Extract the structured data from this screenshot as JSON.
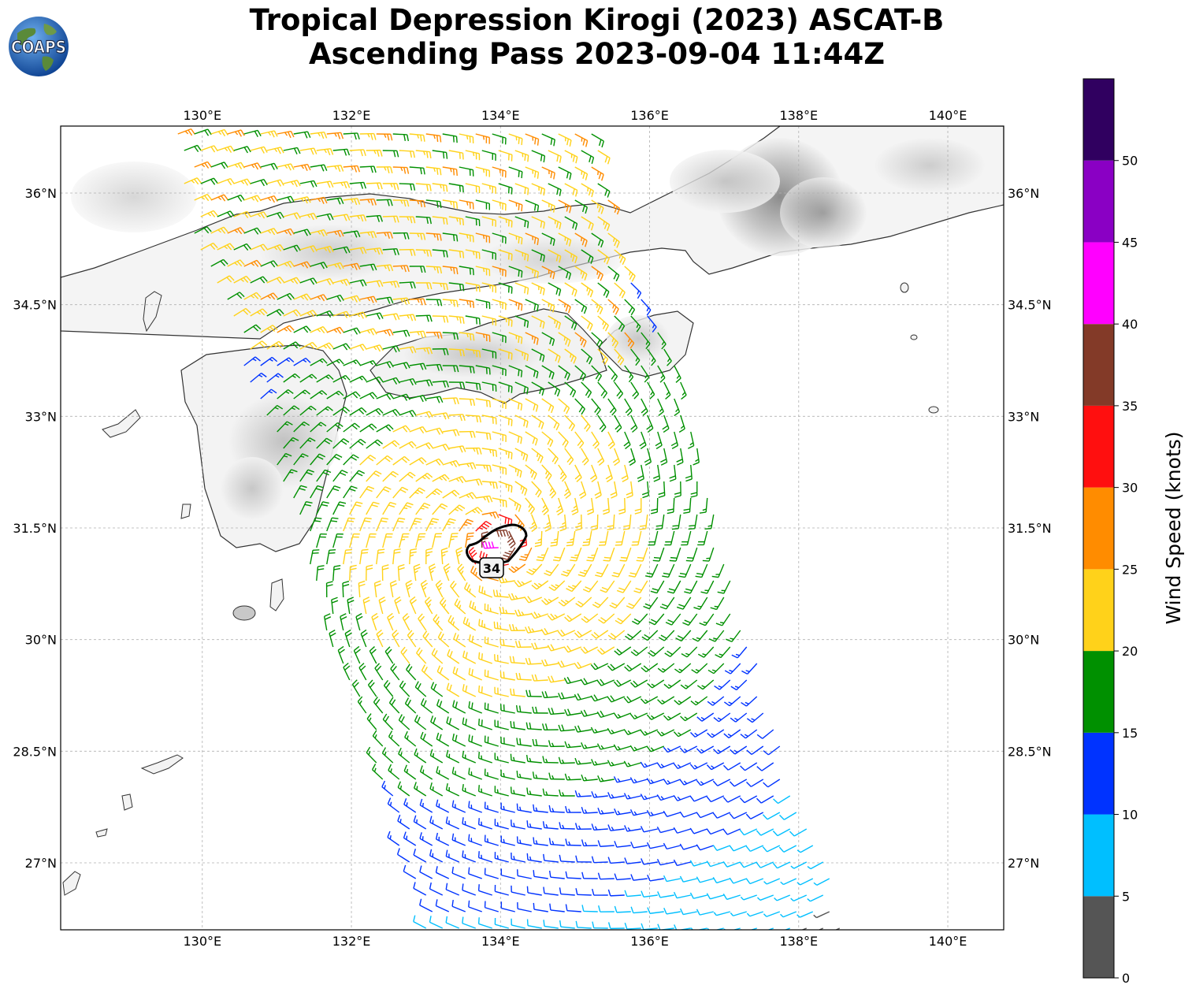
{
  "title": {
    "line1": "Tropical Depression Kirogi (2023) ASCAT-B",
    "line2": "Ascending Pass 2023-09-04 11:44Z"
  },
  "logo": {
    "text": "COAPS"
  },
  "map": {
    "lon_range": [
      128.1,
      140.75
    ],
    "lat_range": [
      26.1,
      36.9
    ],
    "lon_ticks": [
      "130°E",
      "132°E",
      "134°E",
      "136°E",
      "138°E",
      "140°E"
    ],
    "lat_ticks": [
      "27°N",
      "28.5°N",
      "30°N",
      "31.5°N",
      "33°N",
      "34.5°N",
      "36°N"
    ],
    "gridlines": true,
    "storm_center": {
      "lon": 133.95,
      "lat": 31.3
    },
    "wind_radius_label": "34"
  },
  "colorbar": {
    "label": "Wind Speed (knots)",
    "ticks": [
      "0",
      "5",
      "10",
      "15",
      "20",
      "25",
      "30",
      "35",
      "40",
      "45",
      "50"
    ],
    "bins": [
      {
        "from": 0,
        "to": 5,
        "color": "#555555"
      },
      {
        "from": 5,
        "to": 10,
        "color": "#00bfff"
      },
      {
        "from": 10,
        "to": 15,
        "color": "#0033ff"
      },
      {
        "from": 15,
        "to": 20,
        "color": "#009000"
      },
      {
        "from": 20,
        "to": 25,
        "color": "#ffd21a"
      },
      {
        "from": 25,
        "to": 30,
        "color": "#ff8c00"
      },
      {
        "from": 30,
        "to": 35,
        "color": "#ff0f0f"
      },
      {
        "from": 35,
        "to": 40,
        "color": "#833a28"
      },
      {
        "from": 40,
        "to": 45,
        "color": "#ff00ff"
      },
      {
        "from": 45,
        "to": 50,
        "color": "#8a00c4"
      },
      {
        "from": 50,
        "to": 55,
        "color": "#300060"
      }
    ]
  }
}
